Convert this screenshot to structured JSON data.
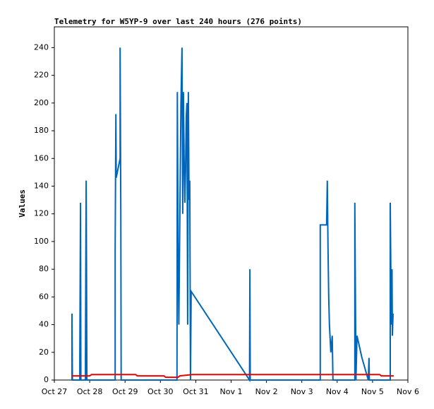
{
  "chart_data": {
    "type": "line",
    "title": "Telemetry for W5YP-9 over last 240 hours (276 points)",
    "y_label": "Values",
    "xlim": [
      0,
      10
    ],
    "xticks": [
      {
        "value": 0,
        "label": "Oct 27"
      },
      {
        "value": 1,
        "label": "Oct 28"
      },
      {
        "value": 2,
        "label": "Oct 29"
      },
      {
        "value": 3,
        "label": "Oct 30"
      },
      {
        "value": 4,
        "label": "Oct 31"
      },
      {
        "value": 5,
        "label": "Nov 1"
      },
      {
        "value": 6,
        "label": "Nov 2"
      },
      {
        "value": 7,
        "label": "Nov 3"
      },
      {
        "value": 8,
        "label": "Nov 4"
      },
      {
        "value": 9,
        "label": "Nov 5"
      },
      {
        "value": 10,
        "label": "Nov 6"
      }
    ],
    "ylim": [
      0,
      255
    ],
    "yticks": [
      0,
      20,
      40,
      60,
      80,
      100,
      120,
      140,
      160,
      180,
      200,
      220,
      240
    ],
    "series": [
      {
        "color": "#0066bb",
        "x": [
          0.5,
          0.5,
          0.51,
          0.72,
          0.72,
          0.74,
          0.75,
          0.88,
          0.88,
          0.9,
          0.91,
          0.92,
          1.72,
          1.72,
          1.74,
          1.75,
          1.86,
          1.86,
          1.88,
          1.89,
          3.47,
          3.48,
          3.5,
          3.52,
          3.55,
          3.58,
          3.61,
          3.63,
          3.65,
          3.67,
          3.69,
          3.71,
          3.73,
          3.75,
          3.77,
          3.79,
          3.81,
          3.83,
          3.85,
          3.87,
          5.52,
          5.53,
          5.54,
          7.52,
          7.52,
          7.7,
          7.72,
          7.74,
          7.76,
          7.78,
          7.82,
          7.86,
          7.88,
          8.5,
          8.5,
          8.53,
          8.56,
          8.7,
          8.88,
          8.9,
          8.91,
          9.5,
          9.5,
          9.53,
          9.55,
          9.56,
          9.58
        ],
        "values": [
          0,
          48,
          0,
          0,
          16,
          128,
          0,
          0,
          16,
          144,
          80,
          0,
          0,
          96,
          192,
          146,
          160,
          240,
          120,
          0,
          0,
          208,
          100,
          40,
          120,
          200,
          240,
          120,
          208,
          160,
          128,
          150,
          190,
          200,
          40,
          208,
          130,
          144,
          0,
          64,
          0,
          80,
          0,
          0,
          112,
          112,
          144,
          96,
          60,
          40,
          20,
          32,
          0,
          0,
          128,
          0,
          32,
          16,
          0,
          16,
          0,
          0,
          128,
          40,
          80,
          32,
          48
        ]
      },
      {
        "color": "#ee0000",
        "x": [
          0.5,
          1.0,
          1.05,
          2.3,
          2.35,
          3.1,
          3.15,
          3.5,
          3.55,
          3.9,
          9.2,
          9.25,
          9.6
        ],
        "values": [
          3,
          3,
          4,
          4,
          3,
          3,
          2,
          2,
          3,
          4,
          4,
          3,
          3
        ]
      }
    ]
  }
}
